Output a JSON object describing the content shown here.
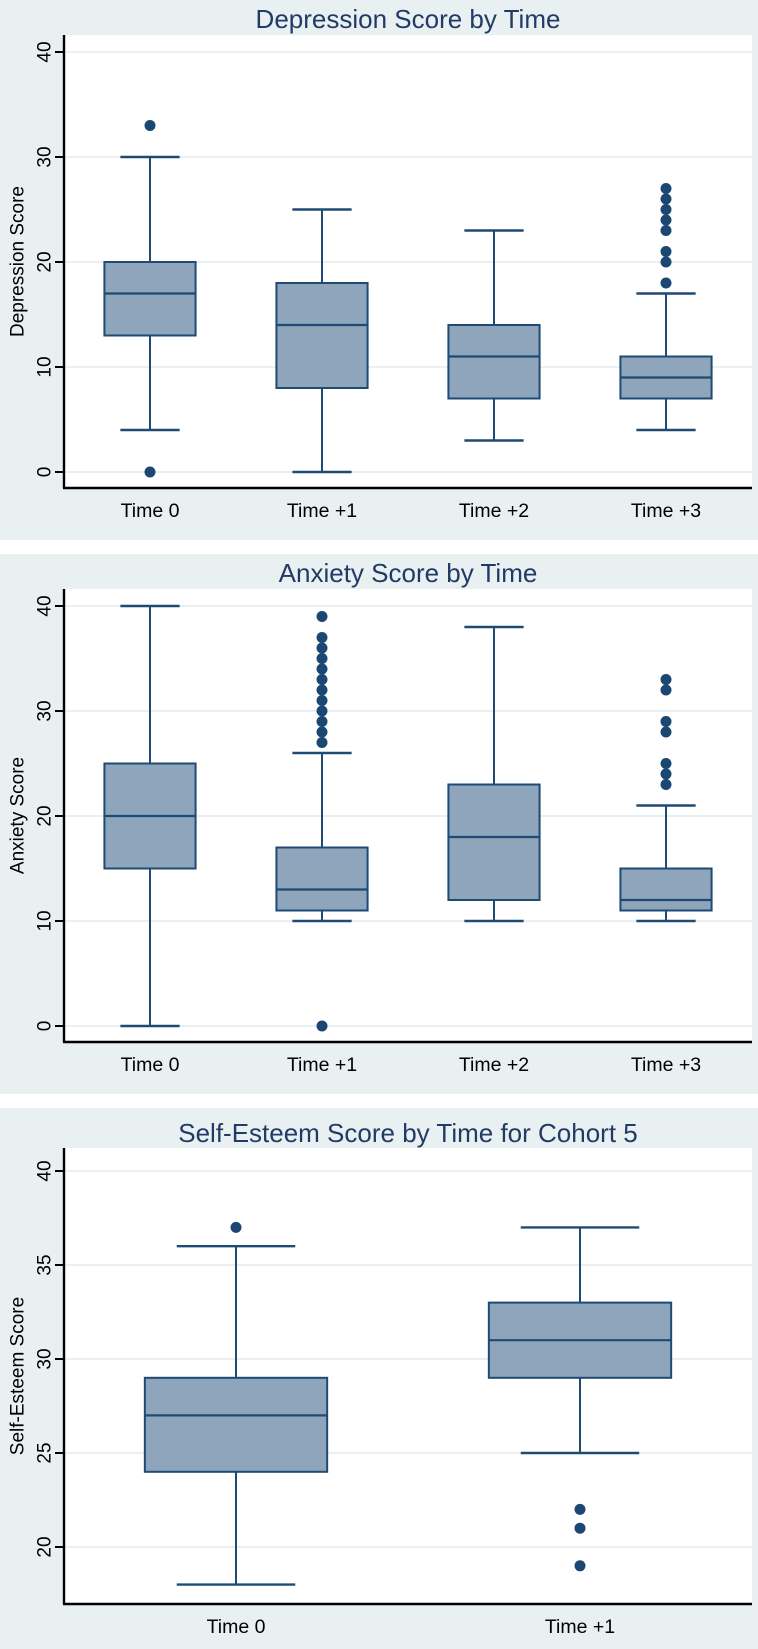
{
  "page": {
    "background": "#ffffff",
    "panel_background": "#e9f0f1"
  },
  "colors": {
    "panel_bg": "#e9f0f1",
    "plot_bg": "#ffffff",
    "gridline": "#e2ecee",
    "axis": "#000000",
    "box_fill": "#8fa5bb",
    "box_stroke": "#1e4a74",
    "whisker": "#1e4a74",
    "outlier_dot": "#1b4873",
    "title": "#223a66",
    "tick_text": "#000000"
  },
  "chart_data": [
    {
      "type": "box",
      "title": "Depression Score by Time",
      "xlabel": "",
      "ylabel": "Depression Score",
      "categories": [
        "Time 0",
        "Time +1",
        "Time +2",
        "Time +3"
      ],
      "y_ticks": [
        0,
        10,
        20,
        30,
        40
      ],
      "ylim": [
        -1.5,
        41.5
      ],
      "grid": true,
      "legend": "none",
      "boxes": [
        {
          "category": "Time 0",
          "whisker_low": 4,
          "q1": 13,
          "median": 17,
          "q3": 20,
          "whisker_high": 30,
          "outliers": [
            0,
            33
          ]
        },
        {
          "category": "Time +1",
          "whisker_low": 0,
          "q1": 8,
          "median": 14,
          "q3": 18,
          "whisker_high": 25,
          "outliers": []
        },
        {
          "category": "Time +2",
          "whisker_low": 3,
          "q1": 7,
          "median": 11,
          "q3": 14,
          "whisker_high": 23,
          "outliers": []
        },
        {
          "category": "Time +3",
          "whisker_low": 4,
          "q1": 7,
          "median": 9,
          "q3": 11,
          "whisker_high": 17,
          "outliers": [
            18,
            20,
            21,
            23,
            24,
            25,
            26,
            27
          ]
        }
      ]
    },
    {
      "type": "box",
      "title": "Anxiety Score by Time",
      "xlabel": "",
      "ylabel": "Anxiety Score",
      "categories": [
        "Time 0",
        "Time +1",
        "Time +2",
        "Time +3"
      ],
      "y_ticks": [
        0,
        10,
        20,
        30,
        40
      ],
      "ylim": [
        -1.5,
        41.5
      ],
      "grid": true,
      "legend": "none",
      "boxes": [
        {
          "category": "Time 0",
          "whisker_low": 0,
          "q1": 15,
          "median": 20,
          "q3": 25,
          "whisker_high": 40,
          "outliers": []
        },
        {
          "category": "Time +1",
          "whisker_low": 10,
          "q1": 11,
          "median": 13,
          "q3": 17,
          "whisker_high": 26,
          "outliers": [
            0,
            27,
            28,
            29,
            30,
            31,
            32,
            33,
            34,
            35,
            36,
            37,
            39
          ]
        },
        {
          "category": "Time +2",
          "whisker_low": 10,
          "q1": 12,
          "median": 18,
          "q3": 23,
          "whisker_high": 38,
          "outliers": []
        },
        {
          "category": "Time +3",
          "whisker_low": 10,
          "q1": 11,
          "median": 12,
          "q3": 15,
          "whisker_high": 21,
          "outliers": [
            23,
            24,
            25,
            28,
            29,
            32,
            33
          ]
        }
      ]
    },
    {
      "type": "box",
      "title": "Self-Esteem Score by Time for Cohort 5",
      "xlabel": "",
      "ylabel": "Self-Esteem Score",
      "categories": [
        "Time 0",
        "Time +1"
      ],
      "y_ticks": [
        20,
        25,
        30,
        35,
        40
      ],
      "ylim": [
        17,
        41.2
      ],
      "grid": true,
      "legend": "none",
      "boxes": [
        {
          "category": "Time 0",
          "whisker_low": 18,
          "q1": 24,
          "median": 27,
          "q3": 29,
          "whisker_high": 36,
          "outliers": [
            37
          ]
        },
        {
          "category": "Time +1",
          "whisker_low": 25,
          "q1": 29,
          "median": 31,
          "q3": 33,
          "whisker_high": 37,
          "outliers": [
            19,
            21,
            22
          ]
        }
      ]
    }
  ]
}
